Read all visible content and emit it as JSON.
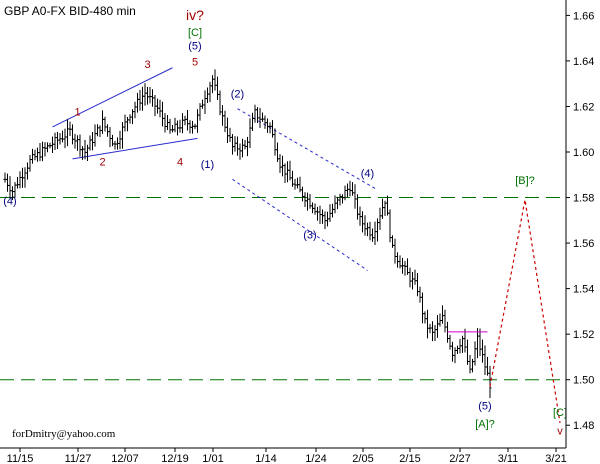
{
  "chart_data": {
    "type": "ohlc",
    "title": "GBP A0-FX BID-480 min",
    "credit": "forDmitry@yahoo.com",
    "y_ticks": [
      "1.66",
      "1.64",
      "1.62",
      "1.60",
      "1.58",
      "1.56",
      "1.54",
      "1.52",
      "1.50",
      "1.48"
    ],
    "x_ticks": [
      "11/15",
      "11/27",
      "12/07",
      "12/19",
      "1/01",
      "1/14",
      "1/24",
      "2/05",
      "2/15",
      "2/27",
      "3/11",
      "3/21"
    ],
    "ylim": [
      1.47,
      1.665
    ],
    "horizontal_levels": [
      1.58,
      1.5
    ],
    "anchors": [
      {
        "i": 0,
        "p": 1.588
      },
      {
        "i": 3,
        "p": 1.583
      },
      {
        "i": 10,
        "p": 1.596
      },
      {
        "i": 18,
        "p": 1.603
      },
      {
        "i": 26,
        "p": 1.609
      },
      {
        "i": 32,
        "p": 1.6
      },
      {
        "i": 39,
        "p": 1.613
      },
      {
        "i": 44,
        "p": 1.603
      },
      {
        "i": 50,
        "p": 1.617
      },
      {
        "i": 56,
        "p": 1.626
      },
      {
        "i": 61,
        "p": 1.619
      },
      {
        "i": 66,
        "p": 1.609
      },
      {
        "i": 72,
        "p": 1.613
      },
      {
        "i": 76,
        "p": 1.612
      },
      {
        "i": 80,
        "p": 1.625
      },
      {
        "i": 83,
        "p": 1.632
      },
      {
        "i": 87,
        "p": 1.615
      },
      {
        "i": 91,
        "p": 1.602
      },
      {
        "i": 96,
        "p": 1.602
      },
      {
        "i": 100,
        "p": 1.617
      },
      {
        "i": 106,
        "p": 1.611
      },
      {
        "i": 110,
        "p": 1.595
      },
      {
        "i": 116,
        "p": 1.585
      },
      {
        "i": 122,
        "p": 1.578
      },
      {
        "i": 128,
        "p": 1.57
      },
      {
        "i": 133,
        "p": 1.578
      },
      {
        "i": 138,
        "p": 1.585
      },
      {
        "i": 142,
        "p": 1.57
      },
      {
        "i": 147,
        "p": 1.564
      },
      {
        "i": 152,
        "p": 1.579
      },
      {
        "i": 155,
        "p": 1.557
      },
      {
        "i": 160,
        "p": 1.548
      },
      {
        "i": 165,
        "p": 1.54
      },
      {
        "i": 168,
        "p": 1.525
      },
      {
        "i": 171,
        "p": 1.52
      },
      {
        "i": 175,
        "p": 1.527
      },
      {
        "i": 179,
        "p": 1.512
      },
      {
        "i": 183,
        "p": 1.518
      },
      {
        "i": 186,
        "p": 1.503
      },
      {
        "i": 189,
        "p": 1.518
      },
      {
        "i": 191,
        "p": 1.51
      },
      {
        "i": 194,
        "p": 1.498
      }
    ],
    "bar_count": 195,
    "channel_lines": [
      {
        "style": "solid",
        "from": [
          19,
          1.611
        ],
        "to": [
          67,
          1.637
        ]
      },
      {
        "style": "solid",
        "from": [
          27,
          1.597
        ],
        "to": [
          77,
          1.606
        ]
      },
      {
        "style": "dashed",
        "from": [
          93,
          1.619
        ],
        "to": [
          148,
          1.584
        ]
      },
      {
        "style": "dashed",
        "from": [
          91,
          1.588
        ],
        "to": [
          145,
          1.548
        ]
      }
    ],
    "projection": {
      "top_short_line": {
        "from": [
          177,
          1.521
        ],
        "to": [
          193,
          1.521
        ]
      },
      "path": [
        [
          194,
          1.497
        ],
        [
          208,
          1.579
        ],
        [
          222,
          1.481
        ]
      ]
    },
    "labels": [
      {
        "text": "1",
        "color": "#a00000",
        "i": 29,
        "p": 1.616
      },
      {
        "text": "2",
        "color": "#a00000",
        "i": 39,
        "p": 1.594
      },
      {
        "text": "3",
        "color": "#a00000",
        "i": 57,
        "p": 1.637
      },
      {
        "text": "4",
        "color": "#a00000",
        "i": 70,
        "p": 1.594
      },
      {
        "text": "5",
        "color": "#a00000",
        "i": 76,
        "p": 1.638
      },
      {
        "text": "(5)",
        "color": "#000080",
        "i": 76,
        "p": 1.645
      },
      {
        "text": "[C]",
        "color": "#007000",
        "i": 76,
        "p": 1.651
      },
      {
        "text": "iv?",
        "color": "#a00000",
        "i": 76,
        "p": 1.658,
        "big": true
      },
      {
        "text": "(1)",
        "color": "#000080",
        "i": 81,
        "p": 1.593
      },
      {
        "text": "(2)",
        "color": "#000080",
        "i": 93,
        "p": 1.624
      },
      {
        "text": "(3)",
        "color": "#000080",
        "i": 122,
        "p": 1.562
      },
      {
        "text": "(4)",
        "color": "#000080",
        "i": 145,
        "p": 1.589
      },
      {
        "text": "(4)",
        "color": "#000080",
        "i": 2,
        "p": 1.577
      },
      {
        "text": "[B]?",
        "color": "#007000",
        "i": 208,
        "p": 1.586
      },
      {
        "text": "(5)",
        "color": "#000080",
        "i": 192,
        "p": 1.487
      },
      {
        "text": "[A]?",
        "color": "#007000",
        "i": 192,
        "p": 1.479
      },
      {
        "text": "[C]",
        "color": "#007000",
        "i": 222,
        "p": 1.484
      },
      {
        "text": "v",
        "color": "#a00000",
        "i": 222,
        "p": 1.476
      }
    ],
    "colors": {
      "bars": "#000000",
      "levels": "#007000",
      "solid_channel": "#2a2ad0",
      "dashed_channel": "#2a2ad0",
      "projection": "#cc0000",
      "pink_line": "#cc00cc",
      "axis": "#000000"
    }
  }
}
